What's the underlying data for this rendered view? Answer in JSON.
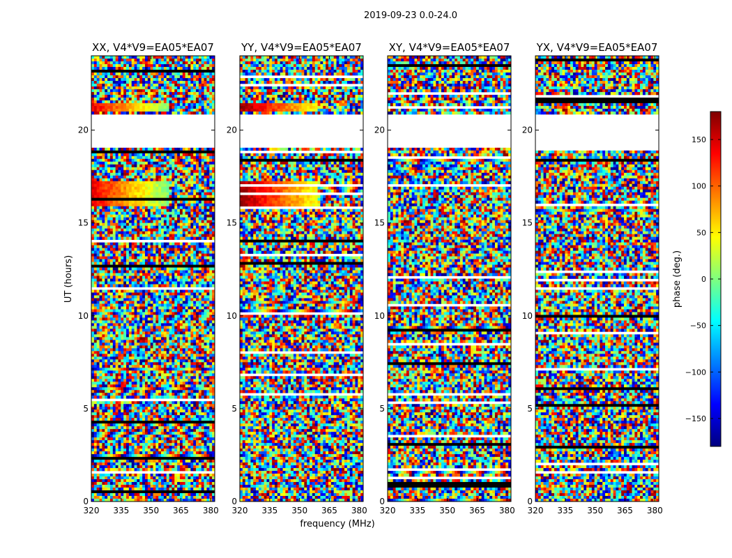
{
  "figure": {
    "suptitle": "2019-09-23 0.0-24.0"
  },
  "colorbar": {
    "label": "phase (deg.)",
    "range": [
      -180,
      180
    ],
    "ticks": [
      150,
      100,
      50,
      0,
      -50,
      -100,
      -150
    ],
    "tick_labels": [
      "150",
      "100",
      "50",
      "0",
      "−50",
      "−100",
      "−150"
    ],
    "colormap": [
      "#00007f",
      "#0000ff",
      "#007fff",
      "#00ffff",
      "#7fff7f",
      "#ffff00",
      "#ff7f00",
      "#ff0000",
      "#7f0000"
    ]
  },
  "chart_data": [
    {
      "type": "heatmap",
      "title": "XX, V4*V9=EA05*EA07",
      "xlabel": "",
      "ylabel": "UT (hours)",
      "xlim": [
        320,
        382
      ],
      "ylim": [
        0,
        24
      ],
      "xticks": [
        320,
        335,
        350,
        365,
        380
      ],
      "yticks": [
        0,
        5,
        10,
        15,
        20
      ],
      "value": "visibility phase (deg.)",
      "flagged_ut_ranges": [
        [
          19.1,
          20.8
        ]
      ],
      "coherent_ut_ranges": [
        [
          21.0,
          21.5
        ],
        [
          15.9,
          17.2
        ]
      ],
      "coherent_phase_trend": [
        140,
        0
      ]
    },
    {
      "type": "heatmap",
      "title": "YY, V4*V9=EA05*EA07",
      "xlabel": "frequency (MHz)",
      "ylabel": "",
      "xlim": [
        320,
        382
      ],
      "ylim": [
        0,
        24
      ],
      "xticks": [
        320,
        335,
        350,
        365,
        380
      ],
      "yticks": [
        0,
        5,
        10,
        15,
        20
      ],
      "value": "visibility phase (deg.)",
      "flagged_ut_ranges": [
        [
          19.1,
          20.8
        ]
      ],
      "coherent_ut_ranges": [
        [
          21.0,
          21.5
        ],
        [
          15.9,
          17.2
        ]
      ],
      "coherent_phase_trend": [
        170,
        40
      ]
    },
    {
      "type": "heatmap",
      "title": "XY, V4*V9=EA05*EA07",
      "xlabel": "",
      "ylabel": "",
      "xlim": [
        320,
        382
      ],
      "ylim": [
        0,
        24
      ],
      "xticks": [
        320,
        335,
        350,
        365,
        380
      ],
      "yticks": [
        0,
        5,
        10,
        15,
        20
      ],
      "value": "visibility phase (deg.)",
      "flagged_ut_ranges": [
        [
          19.1,
          20.8
        ]
      ],
      "coherent_ut_ranges": [],
      "coherent_phase_trend": [
        0,
        0
      ]
    },
    {
      "type": "heatmap",
      "title": "YX, V4*V9=EA05*EA07",
      "xlabel": "",
      "ylabel": "",
      "xlim": [
        320,
        382
      ],
      "ylim": [
        0,
        24
      ],
      "xticks": [
        320,
        335,
        350,
        365,
        380
      ],
      "yticks": [
        0,
        5,
        10,
        15,
        20
      ],
      "value": "visibility phase (deg.)",
      "flagged_ut_ranges": [
        [
          19.1,
          20.8
        ]
      ],
      "coherent_ut_ranges": [],
      "coherent_phase_trend": [
        0,
        0
      ]
    }
  ]
}
